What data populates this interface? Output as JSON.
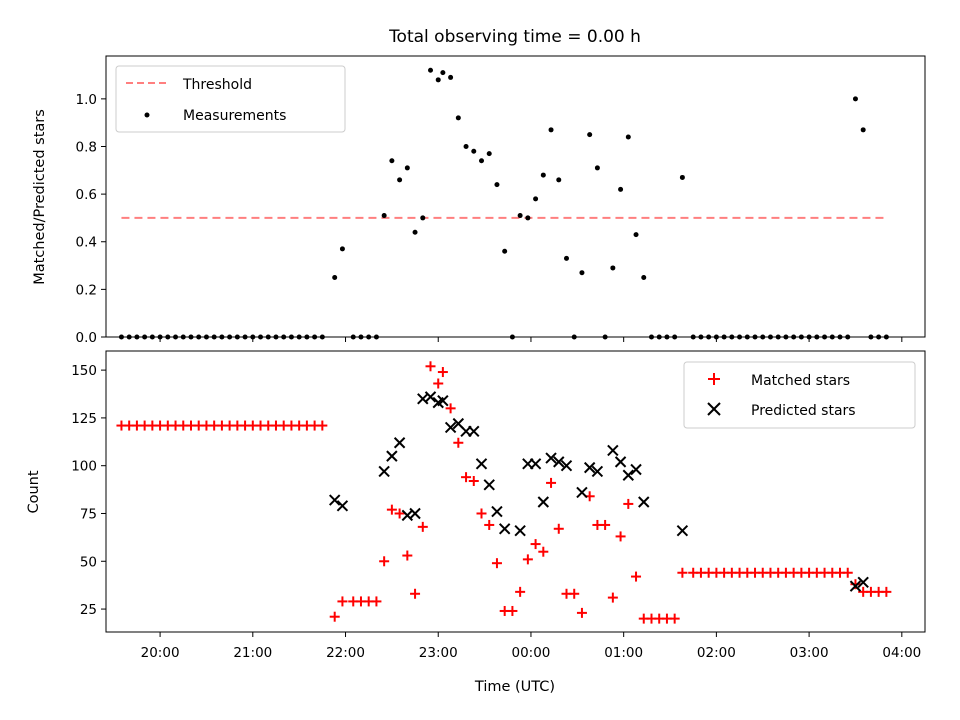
{
  "chart_data": [
    {
      "type": "scatter",
      "title": "Total observing time = 0.00 h",
      "xlabel": "",
      "ylabel": "Matched/Predicted stars",
      "xlim": [
        "19:25",
        "04:15"
      ],
      "ylim": [
        0,
        1.18
      ],
      "yticks": [
        0.0,
        0.2,
        0.4,
        0.6,
        0.8,
        1.0
      ],
      "ytick_labels": [
        "0.0",
        "0.2",
        "0.4",
        "0.6",
        "0.8",
        "1.0"
      ],
      "legend_position": "upper left",
      "grid": false,
      "series": [
        {
          "name": "Threshold",
          "style": "dashed line",
          "color": "#ff7f7f",
          "points": [
            [
              "19:35",
              0.5
            ],
            [
              "03:50",
              0.5
            ]
          ]
        },
        {
          "name": "Measurements",
          "style": "dot",
          "color": "#000000",
          "points": [
            [
              "19:35",
              0
            ],
            [
              "19:40",
              0
            ],
            [
              "19:45",
              0
            ],
            [
              "19:50",
              0
            ],
            [
              "19:55",
              0
            ],
            [
              "20:00",
              0
            ],
            [
              "20:05",
              0
            ],
            [
              "20:10",
              0
            ],
            [
              "20:15",
              0
            ],
            [
              "20:20",
              0
            ],
            [
              "20:25",
              0
            ],
            [
              "20:30",
              0
            ],
            [
              "20:35",
              0
            ],
            [
              "20:40",
              0
            ],
            [
              "20:45",
              0
            ],
            [
              "20:50",
              0
            ],
            [
              "20:55",
              0
            ],
            [
              "21:00",
              0
            ],
            [
              "21:05",
              0
            ],
            [
              "21:10",
              0
            ],
            [
              "21:15",
              0
            ],
            [
              "21:20",
              0
            ],
            [
              "21:25",
              0
            ],
            [
              "21:30",
              0
            ],
            [
              "21:35",
              0
            ],
            [
              "21:40",
              0
            ],
            [
              "21:45",
              0
            ],
            [
              "21:53",
              0.25
            ],
            [
              "21:58",
              0.37
            ],
            [
              "22:05",
              0
            ],
            [
              "22:10",
              0
            ],
            [
              "22:15",
              0
            ],
            [
              "22:20",
              0
            ],
            [
              "22:25",
              0.51
            ],
            [
              "22:30",
              0.74
            ],
            [
              "22:35",
              0.66
            ],
            [
              "22:40",
              0.71
            ],
            [
              "22:45",
              0.44
            ],
            [
              "22:50",
              0.5
            ],
            [
              "22:55",
              1.12
            ],
            [
              "23:00",
              1.08
            ],
            [
              "23:03",
              1.11
            ],
            [
              "23:08",
              1.09
            ],
            [
              "23:13",
              0.92
            ],
            [
              "23:18",
              0.8
            ],
            [
              "23:23",
              0.78
            ],
            [
              "23:28",
              0.74
            ],
            [
              "23:33",
              0.77
            ],
            [
              "23:38",
              0.64
            ],
            [
              "23:43",
              0.36
            ],
            [
              "23:48",
              0
            ],
            [
              "23:53",
              0.51
            ],
            [
              "23:58",
              0.5
            ],
            [
              "00:03",
              0.58
            ],
            [
              "00:08",
              0.68
            ],
            [
              "00:13",
              0.87
            ],
            [
              "00:18",
              0.66
            ],
            [
              "00:23",
              0.33
            ],
            [
              "00:28",
              0
            ],
            [
              "00:33",
              0.27
            ],
            [
              "00:38",
              0.85
            ],
            [
              "00:43",
              0.71
            ],
            [
              "00:48",
              0
            ],
            [
              "00:53",
              0.29
            ],
            [
              "00:58",
              0.62
            ],
            [
              "01:03",
              0.84
            ],
            [
              "01:08",
              0.43
            ],
            [
              "01:13",
              0.25
            ],
            [
              "01:18",
              0
            ],
            [
              "01:23",
              0
            ],
            [
              "01:28",
              0
            ],
            [
              "01:33",
              0
            ],
            [
              "01:38",
              0.67
            ],
            [
              "01:45",
              0
            ],
            [
              "01:50",
              0
            ],
            [
              "01:55",
              0
            ],
            [
              "02:00",
              0
            ],
            [
              "02:05",
              0
            ],
            [
              "02:10",
              0
            ],
            [
              "02:15",
              0
            ],
            [
              "02:20",
              0
            ],
            [
              "02:25",
              0
            ],
            [
              "02:30",
              0
            ],
            [
              "02:35",
              0
            ],
            [
              "02:40",
              0
            ],
            [
              "02:45",
              0
            ],
            [
              "02:50",
              0
            ],
            [
              "02:55",
              0
            ],
            [
              "03:00",
              0
            ],
            [
              "03:05",
              0
            ],
            [
              "03:10",
              0
            ],
            [
              "03:15",
              0
            ],
            [
              "03:20",
              0
            ],
            [
              "03:25",
              0
            ],
            [
              "03:30",
              1.0
            ],
            [
              "03:35",
              0.87
            ],
            [
              "03:40",
              0
            ],
            [
              "03:45",
              0
            ],
            [
              "03:50",
              0
            ]
          ]
        }
      ]
    },
    {
      "type": "scatter",
      "title": "",
      "xlabel": "Time (UTC)",
      "ylabel": "Count",
      "xlim": [
        "19:25",
        "04:15"
      ],
      "ylim": [
        13,
        160
      ],
      "xticks": [
        "20:00",
        "21:00",
        "22:00",
        "23:00",
        "00:00",
        "01:00",
        "02:00",
        "03:00",
        "04:00"
      ],
      "yticks": [
        25,
        50,
        75,
        100,
        125,
        150
      ],
      "legend_position": "upper right",
      "grid": false,
      "series": [
        {
          "name": "Matched stars",
          "style": "plus",
          "color": "#ff0000",
          "points": [
            [
              "19:35",
              121
            ],
            [
              "19:40",
              121
            ],
            [
              "19:45",
              121
            ],
            [
              "19:50",
              121
            ],
            [
              "19:55",
              121
            ],
            [
              "20:00",
              121
            ],
            [
              "20:05",
              121
            ],
            [
              "20:10",
              121
            ],
            [
              "20:15",
              121
            ],
            [
              "20:20",
              121
            ],
            [
              "20:25",
              121
            ],
            [
              "20:30",
              121
            ],
            [
              "20:35",
              121
            ],
            [
              "20:40",
              121
            ],
            [
              "20:45",
              121
            ],
            [
              "20:50",
              121
            ],
            [
              "20:55",
              121
            ],
            [
              "21:00",
              121
            ],
            [
              "21:05",
              121
            ],
            [
              "21:10",
              121
            ],
            [
              "21:15",
              121
            ],
            [
              "21:20",
              121
            ],
            [
              "21:25",
              121
            ],
            [
              "21:30",
              121
            ],
            [
              "21:35",
              121
            ],
            [
              "21:40",
              121
            ],
            [
              "21:45",
              121
            ],
            [
              "21:53",
              21
            ],
            [
              "21:58",
              29
            ],
            [
              "22:05",
              29
            ],
            [
              "22:10",
              29
            ],
            [
              "22:15",
              29
            ],
            [
              "22:20",
              29
            ],
            [
              "22:25",
              50
            ],
            [
              "22:30",
              77
            ],
            [
              "22:35",
              75
            ],
            [
              "22:40",
              53
            ],
            [
              "22:45",
              33
            ],
            [
              "22:50",
              68
            ],
            [
              "22:55",
              152
            ],
            [
              "23:00",
              143
            ],
            [
              "23:03",
              149
            ],
            [
              "23:08",
              130
            ],
            [
              "23:13",
              112
            ],
            [
              "23:18",
              94
            ],
            [
              "23:23",
              92
            ],
            [
              "23:28",
              75
            ],
            [
              "23:33",
              69
            ],
            [
              "23:38",
              49
            ],
            [
              "23:43",
              24
            ],
            [
              "23:48",
              24
            ],
            [
              "23:53",
              34
            ],
            [
              "23:58",
              51
            ],
            [
              "00:03",
              59
            ],
            [
              "00:08",
              55
            ],
            [
              "00:13",
              91
            ],
            [
              "00:18",
              67
            ],
            [
              "00:23",
              33
            ],
            [
              "00:28",
              33
            ],
            [
              "00:33",
              23
            ],
            [
              "00:38",
              84
            ],
            [
              "00:43",
              69
            ],
            [
              "00:48",
              69
            ],
            [
              "00:53",
              31
            ],
            [
              "00:58",
              63
            ],
            [
              "01:03",
              80
            ],
            [
              "01:08",
              42
            ],
            [
              "01:13",
              20
            ],
            [
              "01:18",
              20
            ],
            [
              "01:23",
              20
            ],
            [
              "01:28",
              20
            ],
            [
              "01:33",
              20
            ],
            [
              "01:38",
              44
            ],
            [
              "01:45",
              44
            ],
            [
              "01:50",
              44
            ],
            [
              "01:55",
              44
            ],
            [
              "02:00",
              44
            ],
            [
              "02:05",
              44
            ],
            [
              "02:10",
              44
            ],
            [
              "02:15",
              44
            ],
            [
              "02:20",
              44
            ],
            [
              "02:25",
              44
            ],
            [
              "02:30",
              44
            ],
            [
              "02:35",
              44
            ],
            [
              "02:40",
              44
            ],
            [
              "02:45",
              44
            ],
            [
              "02:50",
              44
            ],
            [
              "02:55",
              44
            ],
            [
              "03:00",
              44
            ],
            [
              "03:05",
              44
            ],
            [
              "03:10",
              44
            ],
            [
              "03:15",
              44
            ],
            [
              "03:20",
              44
            ],
            [
              "03:25",
              44
            ],
            [
              "03:30",
              38
            ],
            [
              "03:35",
              34
            ],
            [
              "03:40",
              34
            ],
            [
              "03:45",
              34
            ],
            [
              "03:50",
              34
            ]
          ]
        },
        {
          "name": "Predicted stars",
          "style": "x",
          "color": "#000000",
          "points": [
            [
              "21:53",
              82
            ],
            [
              "21:58",
              79
            ],
            [
              "22:25",
              97
            ],
            [
              "22:30",
              105
            ],
            [
              "22:35",
              112
            ],
            [
              "22:40",
              74
            ],
            [
              "22:45",
              75
            ],
            [
              "22:50",
              135
            ],
            [
              "22:55",
              136
            ],
            [
              "23:00",
              133
            ],
            [
              "23:03",
              134
            ],
            [
              "23:08",
              120
            ],
            [
              "23:13",
              122
            ],
            [
              "23:18",
              118
            ],
            [
              "23:23",
              118
            ],
            [
              "23:28",
              101
            ],
            [
              "23:33",
              90
            ],
            [
              "23:38",
              76
            ],
            [
              "23:43",
              67
            ],
            [
              "23:53",
              66
            ],
            [
              "23:58",
              101
            ],
            [
              "00:03",
              101
            ],
            [
              "00:08",
              81
            ],
            [
              "00:13",
              104
            ],
            [
              "00:18",
              102
            ],
            [
              "00:23",
              100
            ],
            [
              "00:33",
              86
            ],
            [
              "00:38",
              99
            ],
            [
              "00:43",
              97
            ],
            [
              "00:53",
              108
            ],
            [
              "00:58",
              102
            ],
            [
              "01:03",
              95
            ],
            [
              "01:08",
              98
            ],
            [
              "01:13",
              81
            ],
            [
              "01:38",
              66
            ],
            [
              "03:30",
              37
            ],
            [
              "03:35",
              39
            ]
          ]
        }
      ]
    }
  ]
}
